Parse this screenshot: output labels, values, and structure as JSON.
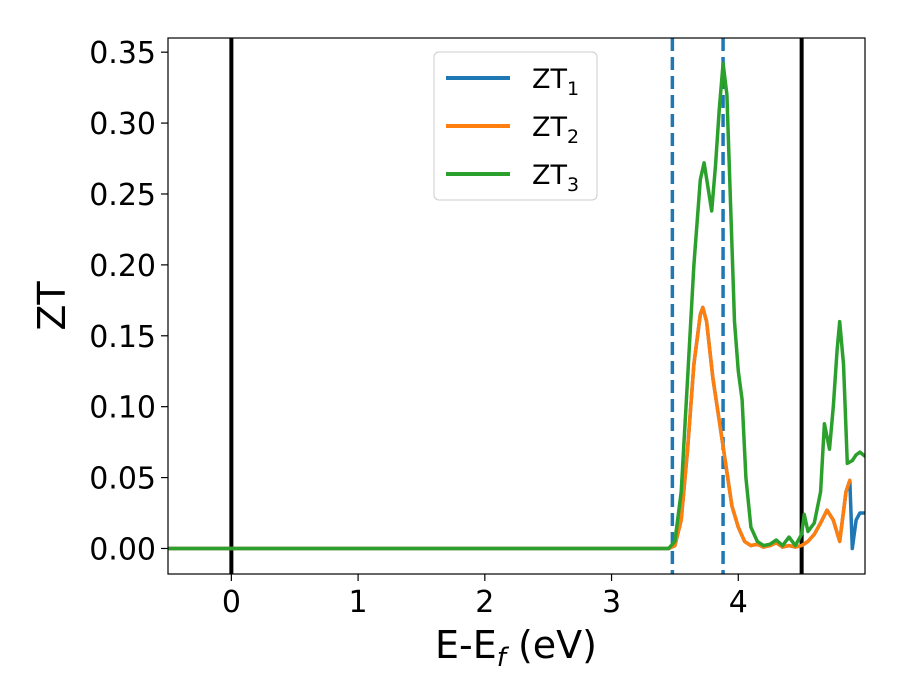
{
  "chart_data": {
    "type": "line",
    "xlabel": {
      "main": "E-E",
      "sub": "f",
      "unit": " (eV)"
    },
    "ylabel": "ZT",
    "xlim": [
      -0.5,
      5.0
    ],
    "ylim": [
      -0.018,
      0.36
    ],
    "xticks": [
      0,
      1,
      2,
      3,
      4
    ],
    "xtick_labels": [
      "0",
      "1",
      "2",
      "3",
      "4"
    ],
    "yticks": [
      0.0,
      0.05,
      0.1,
      0.15,
      0.2,
      0.25,
      0.3,
      0.35
    ],
    "ytick_labels": [
      "0.00",
      "0.05",
      "0.10",
      "0.15",
      "0.20",
      "0.25",
      "0.30",
      "0.35"
    ],
    "grid": false,
    "legend_placement": "top-center",
    "vlines": [
      {
        "x": 0.0,
        "style": "solid",
        "color": "#000000"
      },
      {
        "x": 4.5,
        "style": "solid",
        "color": "#000000"
      },
      {
        "x": 3.48,
        "style": "dashed",
        "color": "#1f77b4"
      },
      {
        "x": 3.88,
        "style": "dashed",
        "color": "#1f77b4"
      }
    ],
    "series": [
      {
        "name": "ZT",
        "sub": "1",
        "color": "#1f77b4",
        "x": [
          -0.5,
          3.45,
          3.5,
          3.55,
          3.6,
          3.65,
          3.7,
          3.72,
          3.75,
          3.8,
          3.85,
          3.9,
          3.95,
          4.0,
          4.05,
          4.1,
          4.15,
          4.2,
          4.25,
          4.3,
          4.35,
          4.4,
          4.45,
          4.5,
          4.55,
          4.6,
          4.65,
          4.7,
          4.75,
          4.8,
          4.85,
          4.88,
          4.9,
          4.93,
          4.96,
          5.0
        ],
        "y": [
          0.0,
          0.0,
          0.002,
          0.02,
          0.07,
          0.13,
          0.165,
          0.17,
          0.16,
          0.12,
          0.09,
          0.06,
          0.03,
          0.015,
          0.005,
          0.002,
          0.003,
          0.001,
          0.002,
          0.004,
          0.001,
          0.002,
          0.001,
          0.002,
          0.005,
          0.01,
          0.018,
          0.027,
          0.02,
          0.005,
          0.04,
          0.048,
          0.0,
          0.02,
          0.025,
          0.025
        ]
      },
      {
        "name": "ZT",
        "sub": "2",
        "color": "#ff7f0e",
        "x": [
          -0.5,
          3.45,
          3.5,
          3.55,
          3.6,
          3.65,
          3.7,
          3.72,
          3.75,
          3.8,
          3.85,
          3.9,
          3.95,
          4.0,
          4.05,
          4.1,
          4.15,
          4.2,
          4.25,
          4.3,
          4.35,
          4.4,
          4.45,
          4.5,
          4.55,
          4.6,
          4.65,
          4.7,
          4.75,
          4.8,
          4.85,
          4.88
        ],
        "y": [
          0.0,
          0.0,
          0.002,
          0.02,
          0.07,
          0.13,
          0.165,
          0.17,
          0.16,
          0.12,
          0.09,
          0.06,
          0.03,
          0.015,
          0.005,
          0.002,
          0.003,
          0.001,
          0.002,
          0.004,
          0.001,
          0.002,
          0.001,
          0.002,
          0.005,
          0.01,
          0.018,
          0.027,
          0.02,
          0.005,
          0.04,
          0.048
        ]
      },
      {
        "name": "ZT",
        "sub": "3",
        "color": "#2ca02c",
        "x": [
          -0.5,
          3.45,
          3.5,
          3.55,
          3.6,
          3.65,
          3.7,
          3.73,
          3.76,
          3.79,
          3.82,
          3.85,
          3.88,
          3.91,
          3.94,
          3.97,
          4.0,
          4.03,
          4.06,
          4.1,
          4.15,
          4.2,
          4.25,
          4.3,
          4.35,
          4.4,
          4.45,
          4.5,
          4.52,
          4.55,
          4.6,
          4.65,
          4.68,
          4.72,
          4.75,
          4.78,
          4.8,
          4.83,
          4.86,
          4.9,
          4.93,
          4.96,
          5.0
        ],
        "y": [
          0.0,
          0.0,
          0.005,
          0.04,
          0.12,
          0.2,
          0.26,
          0.272,
          0.255,
          0.238,
          0.27,
          0.31,
          0.342,
          0.32,
          0.24,
          0.16,
          0.125,
          0.105,
          0.05,
          0.015,
          0.005,
          0.002,
          0.003,
          0.006,
          0.002,
          0.008,
          0.002,
          0.01,
          0.024,
          0.012,
          0.018,
          0.04,
          0.088,
          0.07,
          0.1,
          0.14,
          0.16,
          0.13,
          0.06,
          0.062,
          0.066,
          0.068,
          0.065
        ]
      }
    ]
  }
}
